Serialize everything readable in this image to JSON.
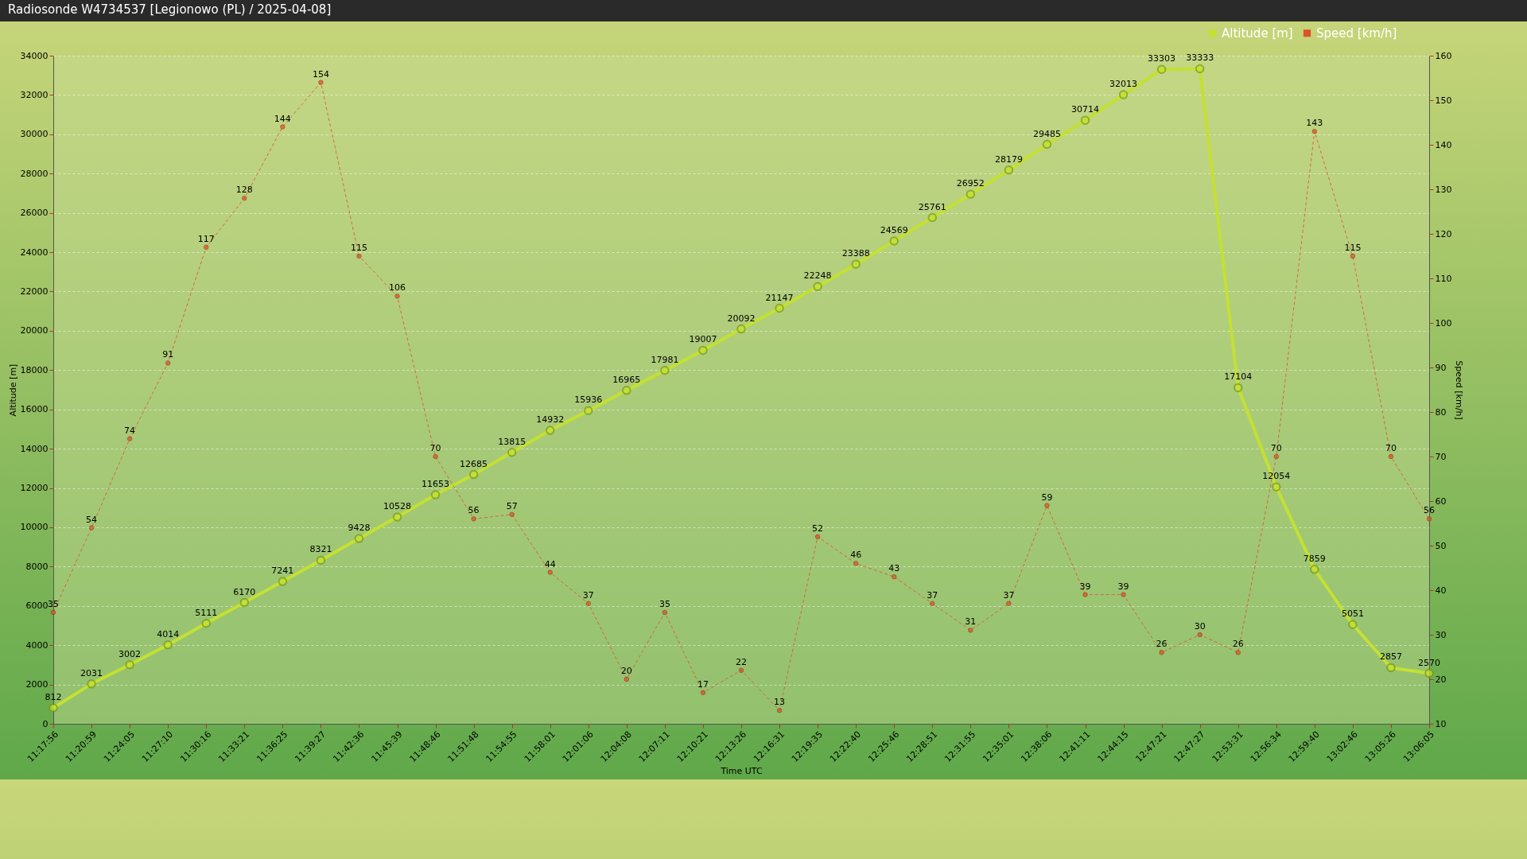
{
  "chart_data": {
    "type": "line",
    "title": "Radiosonde W4734537     [Legionowo (PL) / 2025-04-08]",
    "xlabel": "Time UTC",
    "ylabel": "Altitude [m]",
    "y2label": "Speed [km/h]",
    "categories": [
      "11:17:56",
      "11:20:59",
      "11:24:05",
      "11:27:10",
      "11:30:16",
      "11:33:21",
      "11:36:25",
      "11:39:27",
      "11:42:36",
      "11:45:39",
      "11:48:46",
      "11:51:48",
      "11:54:55",
      "11:58:01",
      "12:01:06",
      "12:04:08",
      "12:07:11",
      "12:10:21",
      "12:13:26",
      "12:16:31",
      "12:19:35",
      "12:22:40",
      "12:25:46",
      "12:28:51",
      "12:31:55",
      "12:35:01",
      "12:38:06",
      "12:41:11",
      "12:44:15",
      "12:47:21",
      "12:47:27",
      "12:53:31",
      "12:56:34",
      "12:59:40",
      "13:02:46",
      "13:05:26",
      "13:06:05"
    ],
    "series": [
      {
        "name": "Altitude [m]",
        "color": "#c4e033",
        "line_style": "solid",
        "values": [
          812,
          2031,
          3002,
          4014,
          5111,
          6170,
          7241,
          8321,
          9428,
          10528,
          11653,
          12685,
          13815,
          14932,
          15936,
          16965,
          17981,
          19007,
          20092,
          21147,
          22248,
          23388,
          24569,
          25761,
          26952,
          28179,
          29485,
          30714,
          32013,
          33303,
          33333,
          17104,
          12054,
          7859,
          5051,
          2857,
          2570
        ]
      },
      {
        "name": "Speed [km/h]",
        "color": "#e0502a",
        "axis": "y2",
        "line_style": "dashed",
        "values": [
          35,
          54,
          74,
          91,
          117,
          128,
          144,
          154,
          115,
          106,
          70,
          56,
          57,
          44,
          37,
          20,
          35,
          17,
          22,
          13,
          52,
          46,
          43,
          37,
          31,
          37,
          59,
          39,
          39,
          26,
          30,
          26,
          70,
          143,
          115,
          70,
          56
        ]
      }
    ],
    "ylim": [
      0,
      34000
    ],
    "yticks": [
      0,
      2000,
      4000,
      6000,
      8000,
      10000,
      12000,
      14000,
      16000,
      18000,
      20000,
      22000,
      24000,
      26000,
      28000,
      30000,
      32000,
      34000
    ],
    "y2lim": [
      10,
      160
    ],
    "y2ticks": [
      10,
      20,
      30,
      40,
      50,
      60,
      70,
      80,
      90,
      100,
      110,
      120,
      130,
      140,
      150,
      160
    ],
    "grid": "y",
    "legend": "top right",
    "marker": "circle",
    "data_labels": true
  }
}
